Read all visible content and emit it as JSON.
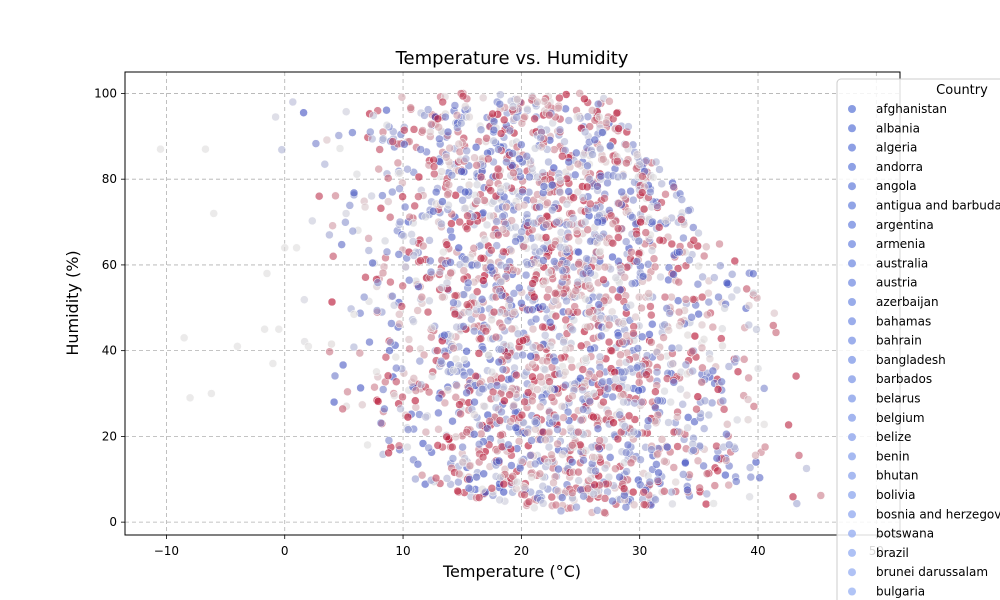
{
  "chart_data": {
    "type": "scatter",
    "title": "Temperature vs. Humidity",
    "xlabel": "Temperature (°C)",
    "ylabel": "Humidity (%)",
    "xlim": [
      -13.5,
      52
    ],
    "ylim": [
      -3,
      105
    ],
    "x_ticks": [
      -10,
      0,
      10,
      20,
      30,
      40,
      50
    ],
    "y_ticks": [
      0,
      20,
      40,
      60,
      80,
      100
    ],
    "grid": true,
    "colormap": [
      "#3b4cc0",
      "#dddcdc",
      "#b40426"
    ],
    "marker_alpha": 0.6,
    "legend": {
      "title": "Country",
      "placement": "right-outside-top",
      "entries": [
        {
          "name": "afghanistan",
          "color": "#6c83db"
        },
        {
          "name": "albania",
          "color": "#6e85dc"
        },
        {
          "name": "algeria",
          "color": "#7087dd"
        },
        {
          "name": "andorra",
          "color": "#7289de"
        },
        {
          "name": "angola",
          "color": "#748bdf"
        },
        {
          "name": "antigua and barbuda",
          "color": "#768de0"
        },
        {
          "name": "argentina",
          "color": "#788fe1"
        },
        {
          "name": "armenia",
          "color": "#7a91e2"
        },
        {
          "name": "australia",
          "color": "#7c93e3"
        },
        {
          "name": "austria",
          "color": "#7e95e4"
        },
        {
          "name": "azerbaijan",
          "color": "#8097e5"
        },
        {
          "name": "bahamas",
          "color": "#8299e6"
        },
        {
          "name": "bahrain",
          "color": "#849be7"
        },
        {
          "name": "bangladesh",
          "color": "#869de8"
        },
        {
          "name": "barbados",
          "color": "#889fe9"
        },
        {
          "name": "belarus",
          "color": "#8aa1ea"
        },
        {
          "name": "belgium",
          "color": "#8ca3eb"
        },
        {
          "name": "belize",
          "color": "#8ea5ec"
        },
        {
          "name": "benin",
          "color": "#90a7ed"
        },
        {
          "name": "bhutan",
          "color": "#92a9ee"
        },
        {
          "name": "bolivia",
          "color": "#94abef"
        },
        {
          "name": "bosnia and herzegovina",
          "color": "#96adf0"
        },
        {
          "name": "botswana",
          "color": "#98aff1"
        },
        {
          "name": "brazil",
          "color": "#9ab1f2"
        },
        {
          "name": "brunei darussalam",
          "color": "#9cb3f3"
        },
        {
          "name": "bulgaria",
          "color": "#9eb5f4"
        }
      ]
    },
    "density_profile": {
      "description_points": [
        {
          "temperature": -4,
          "humidity_range": [
            100,
            100
          ]
        },
        {
          "temperature": 0,
          "humidity_range": [
            40,
            100
          ]
        },
        {
          "temperature": 10,
          "humidity_range": [
            10,
            100
          ]
        },
        {
          "temperature": 20,
          "humidity_range": [
            3,
            100
          ]
        },
        {
          "temperature": 27,
          "humidity_range": [
            2,
            100
          ]
        },
        {
          "temperature": 30,
          "humidity_range": [
            4,
            89
          ]
        },
        {
          "temperature": 35,
          "humidity_range": [
            4,
            72
          ]
        },
        {
          "temperature": 40,
          "humidity_range": [
            4,
            57
          ]
        },
        {
          "temperature": 45,
          "humidity_range": [
            4,
            27
          ]
        },
        {
          "temperature": 49,
          "humidity_range": [
            4,
            12
          ]
        }
      ],
      "sparse_outliers": [
        {
          "x": -10.5,
          "y": 87
        },
        {
          "x": -6.7,
          "y": 87
        },
        {
          "x": -6,
          "y": 72
        },
        {
          "x": -8.5,
          "y": 43
        },
        {
          "x": -8,
          "y": 29
        },
        {
          "x": -6.2,
          "y": 30
        },
        {
          "x": -4,
          "y": 41
        },
        {
          "x": -1.5,
          "y": 58
        },
        {
          "x": -1.7,
          "y": 45
        },
        {
          "x": -1,
          "y": 37
        },
        {
          "x": -0.5,
          "y": 45
        },
        {
          "x": 1,
          "y": 64
        },
        {
          "x": 2,
          "y": 41
        },
        {
          "x": 7,
          "y": 18
        },
        {
          "x": 0,
          "y": 64
        }
      ]
    }
  }
}
